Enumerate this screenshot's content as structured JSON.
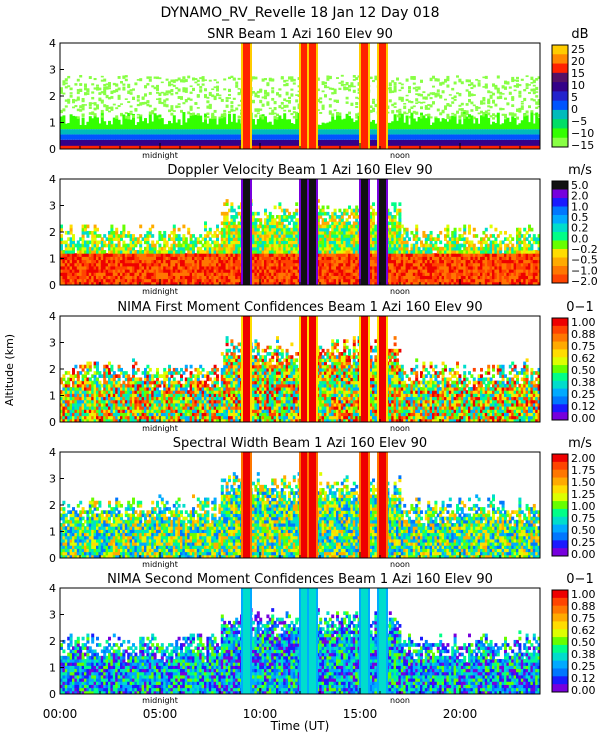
{
  "figure": {
    "title": "DYNAMO_RV_Revelle  18 Jan 12 Day 018",
    "xlabel": "Time (UT)",
    "ylabel": "Altitude (km)",
    "x_ticks": [
      "00:00",
      "05:00",
      "10:00",
      "15:00",
      "20:00"
    ],
    "midnight_label": "midnight",
    "noon_label": "noon"
  },
  "colors": {
    "ramp": [
      "#cc00cc",
      "#7700dd",
      "#1a1aff",
      "#0077ff",
      "#00aaff",
      "#00ddcc",
      "#00ff88",
      "#66ff00",
      "#ddff00",
      "#ffdd00",
      "#ffaa00",
      "#ff7700",
      "#ff4400",
      "#ee0000",
      "#aa0000",
      "#111111"
    ],
    "snr_ramp": [
      "#88ff44",
      "#33ff00",
      "#00dd66",
      "#00bbbb",
      "#0055ff",
      "#2222cc",
      "#330088",
      "#551166",
      "#ff2200",
      "#ff8800",
      "#ffcc00"
    ]
  },
  "chart_data": [
    {
      "type": "heatmap",
      "title": "SNR Beam 1 Azi 160 Elev 90",
      "units": "dB",
      "xlabel": "Time (UT)",
      "ylabel": "Altitude (km)",
      "xlim": [
        0,
        24
      ],
      "ylim": [
        0,
        4
      ],
      "y_ticks": [
        "0",
        "1",
        "2",
        "3",
        "4"
      ],
      "colorbar_labels": [
        "25",
        "20",
        "15",
        "10",
        "5",
        "0",
        "−5",
        "−10",
        "−15"
      ],
      "rain_columns_hours": [
        9.3,
        12.2,
        12.6,
        15.2,
        16.1
      ]
    },
    {
      "type": "heatmap",
      "title": "Doppler Velocity Beam 1 Azi 160 Elev 90",
      "units": "m/s",
      "xlabel": "Time (UT)",
      "ylabel": "Altitude (km)",
      "xlim": [
        0,
        24
      ],
      "ylim": [
        0,
        4
      ],
      "y_ticks": [
        "0",
        "1",
        "2",
        "3",
        "4"
      ],
      "colorbar_labels": [
        "5.0",
        "2.0",
        "1.0",
        "0.5",
        "0.2",
        "0.0",
        "−0.2",
        "−0.5",
        "−1.0",
        "−2.0"
      ],
      "rain_columns_hours": [
        9.3,
        12.2,
        12.6,
        15.2,
        16.1
      ]
    },
    {
      "type": "heatmap",
      "title": "NIMA First Moment Confidences Beam 1 Azi 160 Elev 90",
      "units": "0−1",
      "xlabel": "Time (UT)",
      "ylabel": "Altitude (km)",
      "xlim": [
        0,
        24
      ],
      "ylim": [
        0,
        4
      ],
      "y_ticks": [
        "0",
        "1",
        "2",
        "3",
        "4"
      ],
      "colorbar_labels": [
        "1.00",
        "0.88",
        "0.75",
        "0.62",
        "0.50",
        "0.38",
        "0.25",
        "0.12",
        "0.00"
      ],
      "rain_columns_hours": [
        9.3,
        12.2,
        12.6,
        15.2,
        16.1
      ]
    },
    {
      "type": "heatmap",
      "title": "Spectral Width Beam 1 Azi 160 Elev 90",
      "units": "m/s",
      "xlabel": "Time (UT)",
      "ylabel": "Altitude (km)",
      "xlim": [
        0,
        24
      ],
      "ylim": [
        0,
        4
      ],
      "y_ticks": [
        "0",
        "1",
        "2",
        "3",
        "4"
      ],
      "colorbar_labels": [
        "2.00",
        "1.75",
        "1.50",
        "1.25",
        "1.00",
        "0.75",
        "0.50",
        "0.25",
        "0.00"
      ],
      "rain_columns_hours": [
        9.3,
        12.2,
        12.6,
        15.2,
        16.1
      ]
    },
    {
      "type": "heatmap",
      "title": "NIMA Second Moment Confidences Beam 1 Azi 160 Elev 90",
      "units": "0−1",
      "xlabel": "Time (UT)",
      "ylabel": "Altitude (km)",
      "xlim": [
        0,
        24
      ],
      "ylim": [
        0,
        4
      ],
      "y_ticks": [
        "0",
        "1",
        "2",
        "3",
        "4"
      ],
      "colorbar_labels": [
        "1.00",
        "0.88",
        "0.75",
        "0.62",
        "0.50",
        "0.38",
        "0.25",
        "0.12",
        "0.00"
      ],
      "rain_columns_hours": [
        9.3,
        12.2,
        12.6,
        15.2,
        16.1
      ]
    }
  ]
}
